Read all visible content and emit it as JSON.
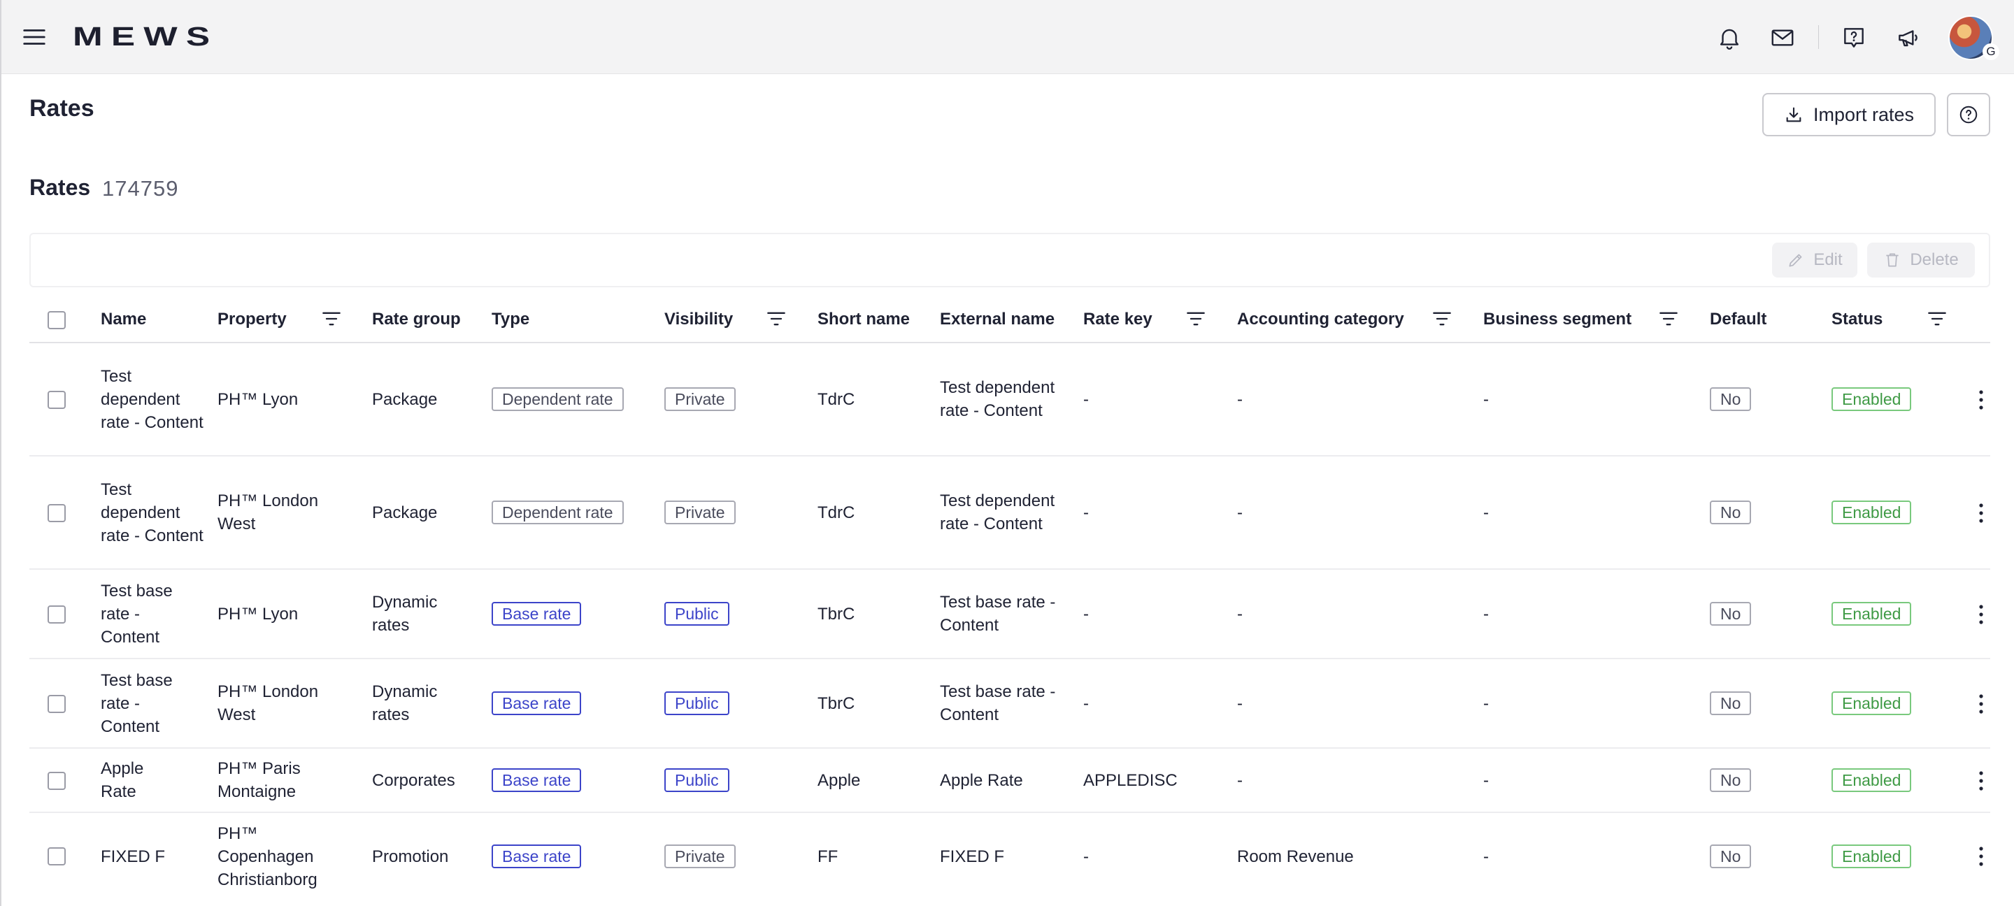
{
  "app": {
    "logo": "MEWS",
    "avatar_badge": "G"
  },
  "page": {
    "title": "Rates",
    "import_label": "Import rates"
  },
  "section": {
    "title": "Rates",
    "count": "174759"
  },
  "actions": {
    "edit": "Edit",
    "delete": "Delete"
  },
  "table": {
    "headers": {
      "name": "Name",
      "property": "Property",
      "rate_group": "Rate group",
      "type": "Type",
      "visibility": "Visibility",
      "short_name": "Short name",
      "external_name": "External name",
      "rate_key": "Rate key",
      "accounting_category": "Accounting category",
      "business_segment": "Business segment",
      "default": "Default",
      "status": "Status"
    },
    "rows": [
      {
        "name": "Test dependent rate - Content",
        "property": "PH™ Lyon",
        "rate_group": "Package",
        "type": "Dependent rate",
        "visibility": "Private",
        "short_name": "TdrC",
        "external_name": "Test dependent rate - Content",
        "rate_key": "-",
        "accounting_category": "-",
        "business_segment": "-",
        "default": "No",
        "status": "Enabled"
      },
      {
        "name": "Test dependent rate - Content",
        "property": "PH™ London West",
        "rate_group": "Package",
        "type": "Dependent rate",
        "visibility": "Private",
        "short_name": "TdrC",
        "external_name": "Test dependent rate - Content",
        "rate_key": "-",
        "accounting_category": "-",
        "business_segment": "-",
        "default": "No",
        "status": "Enabled"
      },
      {
        "name": "Test base rate - Content",
        "property": "PH™ Lyon",
        "rate_group": "Dynamic rates",
        "type": "Base rate",
        "visibility": "Public",
        "short_name": "TbrC",
        "external_name": "Test base rate - Content",
        "rate_key": "-",
        "accounting_category": "-",
        "business_segment": "-",
        "default": "No",
        "status": "Enabled"
      },
      {
        "name": "Test base rate - Content",
        "property": "PH™ London West",
        "rate_group": "Dynamic rates",
        "type": "Base rate",
        "visibility": "Public",
        "short_name": "TbrC",
        "external_name": "Test base rate - Content",
        "rate_key": "-",
        "accounting_category": "-",
        "business_segment": "-",
        "default": "No",
        "status": "Enabled"
      },
      {
        "name": "Apple Rate",
        "property": "PH™ Paris Montaigne",
        "rate_group": "Corporates",
        "type": "Base rate",
        "visibility": "Public",
        "short_name": "Apple",
        "external_name": "Apple Rate",
        "rate_key": "APPLEDISC",
        "accounting_category": "-",
        "business_segment": "-",
        "default": "No",
        "status": "Enabled"
      },
      {
        "name": "FIXED F",
        "property": "PH™ Copenhagen Christianborg",
        "rate_group": "Promotion",
        "type": "Base rate",
        "visibility": "Private",
        "short_name": "FF",
        "external_name": "FIXED F",
        "rate_key": "-",
        "accounting_category": "Room Revenue",
        "business_segment": "-",
        "default": "No",
        "status": "Enabled"
      }
    ]
  },
  "colors": {
    "accent_blue": "#3c44c9",
    "enabled_green": "#3f9a45",
    "topbar_bg": "#f3f3f4"
  },
  "icons": [
    "menu-icon",
    "bell-icon",
    "mail-icon",
    "help-icon",
    "announce-icon",
    "download-icon",
    "question-icon",
    "pencil-icon",
    "trash-icon",
    "filter-icon",
    "kebab-icon"
  ]
}
